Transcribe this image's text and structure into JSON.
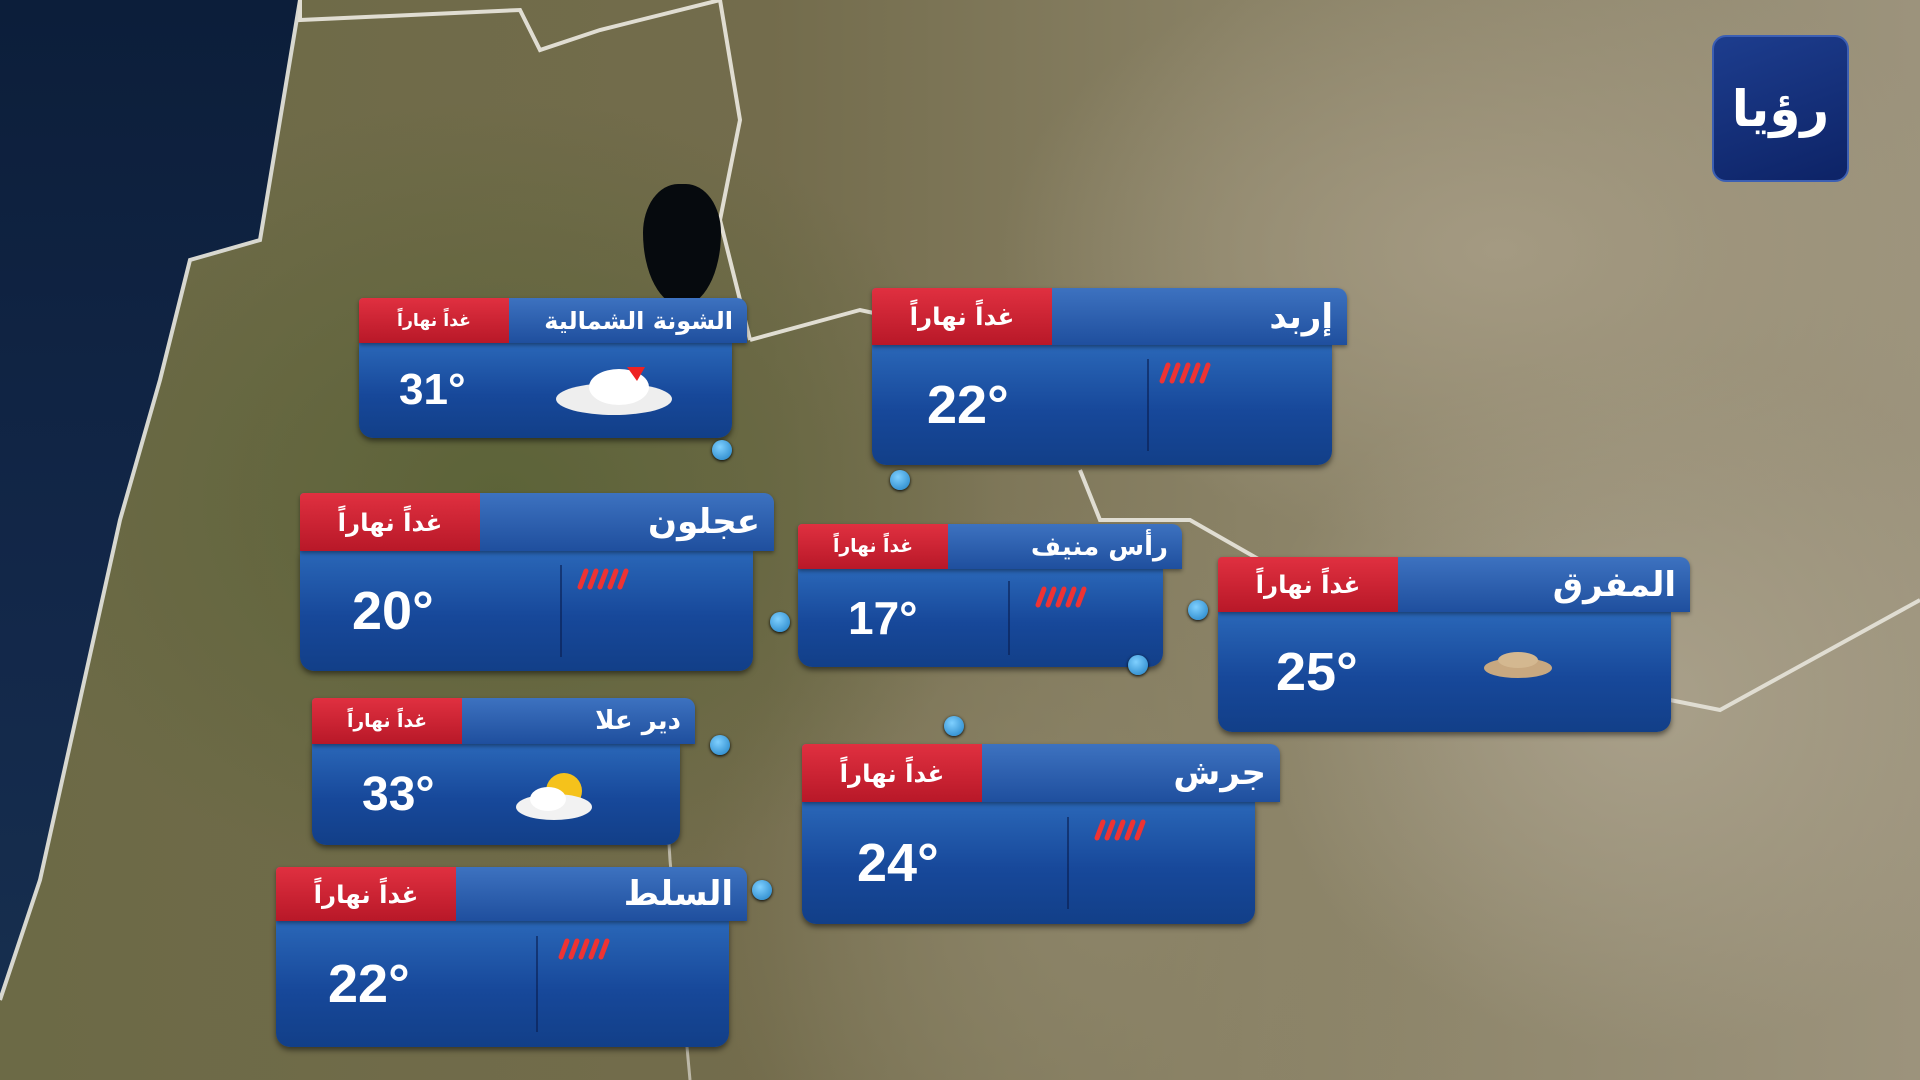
{
  "logo": {
    "text": "رؤيا",
    "color": "#1d3d8e"
  },
  "tag_label": "غداً نهاراً",
  "colors": {
    "header": "#2d5fae",
    "tag": "#d02535",
    "body": "#1a4c9c"
  },
  "cities": [
    {
      "name": "الشونة الشمالية",
      "temp": "31°",
      "icon": "cloud-thunder-icon"
    },
    {
      "name": "إربد",
      "temp": "22°",
      "icon": "rain-icon"
    },
    {
      "name": "عجلون",
      "temp": "20°",
      "icon": "rain-icon"
    },
    {
      "name": "رأس منيف",
      "temp": "17°",
      "icon": "rain-icon"
    },
    {
      "name": "المفرق",
      "temp": "25°",
      "icon": "dust-icon"
    },
    {
      "name": "دير علا",
      "temp": "33°",
      "icon": "partly-cloudy-icon"
    },
    {
      "name": "جرش",
      "temp": "24°",
      "icon": "rain-icon"
    },
    {
      "name": "السلط",
      "temp": "22°",
      "icon": "rain-icon"
    }
  ]
}
